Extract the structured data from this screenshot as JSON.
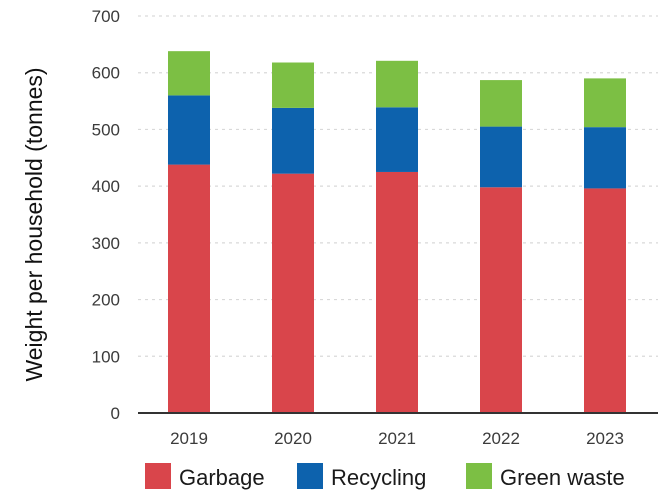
{
  "chart_data": {
    "type": "bar",
    "stacked": true,
    "categories": [
      "2019",
      "2020",
      "2021",
      "2022",
      "2023"
    ],
    "series": [
      {
        "name": "Garbage",
        "values": [
          438,
          422,
          425,
          398,
          396
        ],
        "color": "#d9454b"
      },
      {
        "name": "Recycling",
        "values": [
          122,
          116,
          114,
          107,
          108
        ],
        "color": "#0d62ad"
      },
      {
        "name": "Green waste",
        "values": [
          78,
          80,
          82,
          82,
          86
        ],
        "color": "#7cbf44"
      }
    ],
    "title": "",
    "xlabel": "",
    "ylabel": "Weight per household (tonnes)",
    "ylim": [
      0,
      700
    ],
    "yticks": [
      "0",
      "100",
      "200",
      "300",
      "400",
      "500",
      "600",
      "700"
    ],
    "grid": true,
    "legend_position": "bottom"
  }
}
